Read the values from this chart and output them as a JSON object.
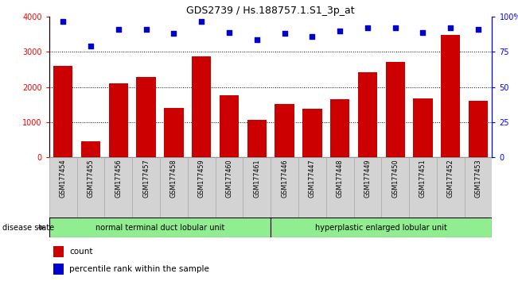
{
  "title": "GDS2739 / Hs.188757.1.S1_3p_at",
  "samples": [
    "GSM177454",
    "GSM177455",
    "GSM177456",
    "GSM177457",
    "GSM177458",
    "GSM177459",
    "GSM177460",
    "GSM177461",
    "GSM177446",
    "GSM177447",
    "GSM177448",
    "GSM177449",
    "GSM177450",
    "GSM177451",
    "GSM177452",
    "GSM177453"
  ],
  "counts": [
    2600,
    450,
    2100,
    2280,
    1400,
    2870,
    1760,
    1070,
    1520,
    1390,
    1660,
    2430,
    2720,
    1680,
    3480,
    1620
  ],
  "percentiles": [
    97,
    79,
    91,
    91,
    88,
    97,
    89,
    84,
    88,
    86,
    90,
    92,
    92,
    89,
    92,
    91
  ],
  "bar_color": "#cc0000",
  "scatter_color": "#0000cc",
  "group1_label": "normal terminal duct lobular unit",
  "group2_label": "hyperplastic enlarged lobular unit",
  "group1_count": 8,
  "group2_count": 8,
  "group1_color": "#90ee90",
  "group2_color": "#90ee90",
  "disease_state_label": "disease state",
  "ylim_left": [
    0,
    4000
  ],
  "ylim_right": [
    0,
    100
  ],
  "yticks_left": [
    0,
    1000,
    2000,
    3000,
    4000
  ],
  "yticks_right": [
    0,
    25,
    50,
    75,
    100
  ],
  "ytick_labels_right": [
    "0",
    "25",
    "50",
    "75",
    "100%"
  ],
  "legend_count_label": "count",
  "legend_percentile_label": "percentile rank within the sample",
  "background_color": "#ffffff",
  "xticklabel_bg": "#d3d3d3"
}
